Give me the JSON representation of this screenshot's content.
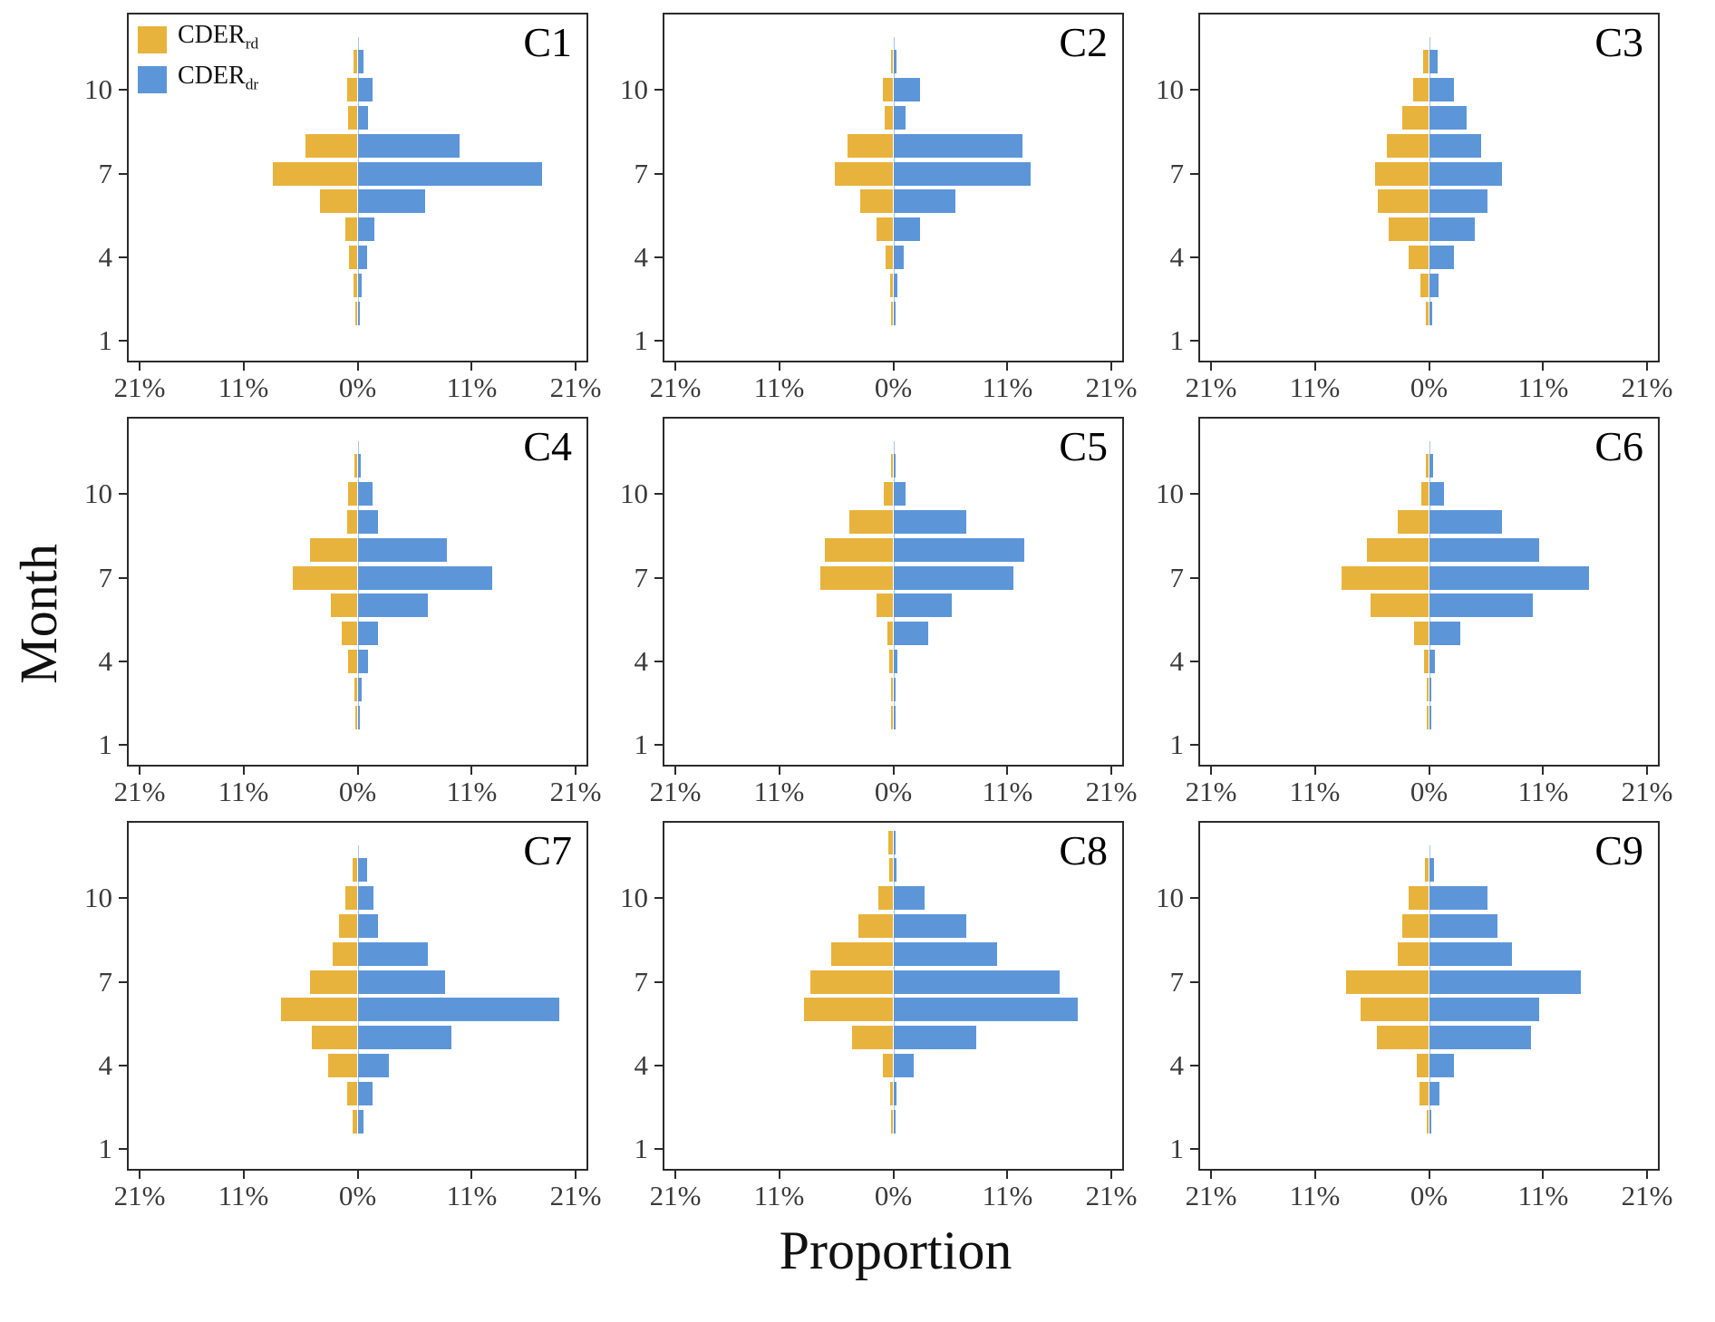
{
  "figure": {
    "ylabel": "Month",
    "xlabel": "Proportion",
    "x_tick_labels": [
      "21%",
      "11%",
      "0%",
      "11%",
      "21%"
    ],
    "y_tick_labels": [
      "1",
      "4",
      "7",
      "10"
    ],
    "colors": {
      "rd": "#E8B33C",
      "dr": "#5C96D9",
      "axis": "#2b2b2b",
      "tick_text": "#3a3a3a"
    },
    "legend": {
      "items": [
        {
          "text": "CDER",
          "sub": "rd",
          "series": "rd"
        },
        {
          "text": "CDER",
          "sub": "dr",
          "series": "dr"
        }
      ]
    }
  },
  "chart_data": {
    "type": "bar",
    "subtype": "back-to-back horizontal bar pyramids, 3x3 small multiples",
    "title": "",
    "xlabel": "Proportion",
    "ylabel": "Month",
    "x_axis": {
      "tick_values_pct": [
        -21,
        -11,
        0,
        11,
        21
      ],
      "tick_labels": [
        "21%",
        "11%",
        "0%",
        "11%",
        "21%"
      ],
      "range_pct": [
        -21,
        21
      ]
    },
    "y_axis": {
      "ticks": [
        1,
        4,
        7,
        10
      ],
      "range": [
        1,
        12
      ]
    },
    "series": [
      {
        "name": "CDER_rd",
        "side": "left",
        "color": "#E8B33C"
      },
      {
        "name": "CDER_dr",
        "side": "right",
        "color": "#5C96D9"
      }
    ],
    "months": [
      1,
      2,
      3,
      4,
      5,
      6,
      7,
      8,
      9,
      10,
      11,
      12
    ],
    "panels": [
      {
        "label": "C1",
        "rd": [
          0,
          0.2,
          0.4,
          0.8,
          1.2,
          3.6,
          8.2,
          5.0,
          0.9,
          1.0,
          0.4,
          0
        ],
        "dr": [
          0,
          0.2,
          0.4,
          0.9,
          1.6,
          6.5,
          17.8,
          9.8,
          1.0,
          1.4,
          0.6,
          0
        ]
      },
      {
        "label": "C2",
        "rd": [
          0,
          0.2,
          0.3,
          0.7,
          1.6,
          3.2,
          5.6,
          4.4,
          0.8,
          1.0,
          0.2,
          0
        ],
        "dr": [
          0,
          0.2,
          0.4,
          1.0,
          2.6,
          6.0,
          13.2,
          12.4,
          1.2,
          2.6,
          0.3,
          0
        ]
      },
      {
        "label": "C3",
        "rd": [
          0,
          0.3,
          0.8,
          2.0,
          3.9,
          4.9,
          5.2,
          4.1,
          2.6,
          1.5,
          0.6,
          0
        ],
        "dr": [
          0,
          0.3,
          0.9,
          2.4,
          4.4,
          5.6,
          7.0,
          5.0,
          3.6,
          2.4,
          0.8,
          0
        ]
      },
      {
        "label": "C4",
        "rd": [
          0,
          0.2,
          0.3,
          0.9,
          1.5,
          2.6,
          6.2,
          4.6,
          1.0,
          0.9,
          0.3,
          0
        ],
        "dr": [
          0,
          0.2,
          0.4,
          1.0,
          2.0,
          6.8,
          13.0,
          8.6,
          2.0,
          1.4,
          0.3,
          0
        ]
      },
      {
        "label": "C5",
        "rd": [
          0,
          0.2,
          0.2,
          0.4,
          0.6,
          1.6,
          7.0,
          6.6,
          4.2,
          0.9,
          0.2,
          0
        ],
        "dr": [
          0,
          0.2,
          0.2,
          0.4,
          3.4,
          5.6,
          11.6,
          12.6,
          7.0,
          1.2,
          0.2,
          0
        ]
      },
      {
        "label": "C6",
        "rd": [
          0,
          0.2,
          0.2,
          0.5,
          1.4,
          5.6,
          8.4,
          6.0,
          3.0,
          0.7,
          0.3,
          0
        ],
        "dr": [
          0,
          0.2,
          0.2,
          0.6,
          3.0,
          10.0,
          15.4,
          10.6,
          7.0,
          1.4,
          0.4,
          0
        ]
      },
      {
        "label": "C7",
        "rd": [
          0,
          0.5,
          1.0,
          2.8,
          4.4,
          7.4,
          4.6,
          2.4,
          1.8,
          1.2,
          0.5,
          0
        ],
        "dr": [
          0,
          0.6,
          1.4,
          3.0,
          9.0,
          19.4,
          8.4,
          6.8,
          2.0,
          1.5,
          0.9,
          0
        ]
      },
      {
        "label": "C8",
        "rd": [
          0,
          0.2,
          0.3,
          1.0,
          4.0,
          8.6,
          8.0,
          6.0,
          3.4,
          1.4,
          0.4,
          0.5
        ],
        "dr": [
          0,
          0.2,
          0.3,
          2.0,
          8.0,
          17.8,
          16.0,
          10.0,
          7.0,
          3.0,
          0.3,
          0.1
        ]
      },
      {
        "label": "C9",
        "rd": [
          0,
          0.2,
          0.9,
          1.2,
          5.0,
          6.6,
          8.0,
          3.0,
          2.6,
          2.0,
          0.4,
          0
        ],
        "dr": [
          0,
          0.2,
          1.0,
          2.4,
          9.8,
          10.6,
          14.6,
          8.0,
          6.6,
          5.6,
          0.5,
          0
        ]
      }
    ]
  }
}
